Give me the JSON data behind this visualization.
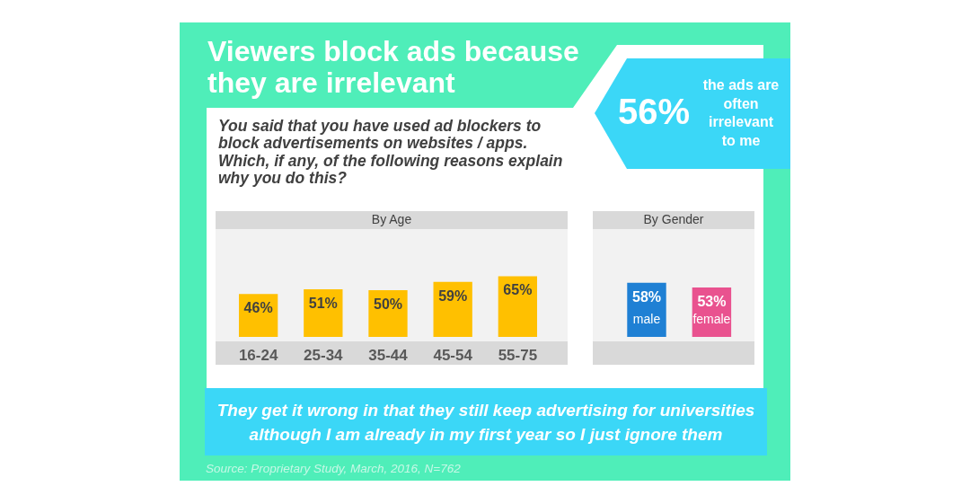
{
  "chart_data": [
    {
      "type": "other",
      "title": "Viewers block ads because they are irrelevant",
      "subtitle": "You said that you have used ad blockers to block advertisements on websites / apps. Which, if any, of the following reasons explain why you do this?",
      "annotations": [
        "56%",
        "the ads are often irrelevant to me"
      ]
    },
    {
      "type": "bar",
      "title": "By Age",
      "categories": [
        "16-24",
        "25-34",
        "35-44",
        "45-54",
        "55-75"
      ],
      "values": [
        46,
        51,
        50,
        59,
        65
      ],
      "value_labels": [
        "46%",
        "51%",
        "50%",
        "59%",
        "65%"
      ],
      "color": "#ffc000"
    },
    {
      "type": "bar",
      "title": "By Gender",
      "categories": [
        "male",
        "female"
      ],
      "values": [
        58,
        53
      ],
      "value_labels": [
        "58%",
        "53%"
      ],
      "colors": [
        "#1f80d4",
        "#e9528f"
      ]
    },
    {
      "type": "other",
      "annotations": [
        "They get it wrong in that they still keep advertising for universities although I am already in my first year so I just ignore them",
        "Source: Proprietary Study, March, 2016, N=762"
      ]
    }
  ]
}
